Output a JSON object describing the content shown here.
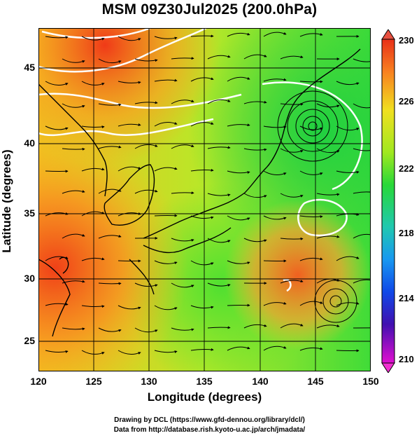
{
  "title": "MSM 09Z30Jul2025 (200.0hPa)",
  "x_axis": {
    "label": "Longitude (degrees)",
    "ticks": [
      "120",
      "125",
      "130",
      "135",
      "140",
      "145",
      "150"
    ],
    "values": [
      120,
      125,
      130,
      135,
      140,
      145,
      150
    ],
    "range": [
      120,
      150
    ]
  },
  "y_axis": {
    "label": "Latitude  (degrees)",
    "ticks": [
      "25",
      "30",
      "35",
      "40",
      "45"
    ],
    "values": [
      25,
      30,
      35,
      40,
      45
    ],
    "range": [
      22.4,
      47.6
    ]
  },
  "colorbar": {
    "ticks": [
      "230",
      "226",
      "222",
      "218",
      "214",
      "210"
    ],
    "values": [
      230,
      226,
      222,
      218,
      214,
      210
    ],
    "min": 210,
    "max": 230
  },
  "credit": {
    "line1": "Drawing by DCL (https://www.gfd-dennou.org/library/dcl/)",
    "line2": "Data from http://database.rish.kyoto-u.ac.jp/arch/jmadata/"
  },
  "colors": {
    "warm": "#ff5a20",
    "mid": "#e8f020",
    "cool": "#38e030",
    "contour": "#ffffff",
    "frame": "#000000"
  }
}
